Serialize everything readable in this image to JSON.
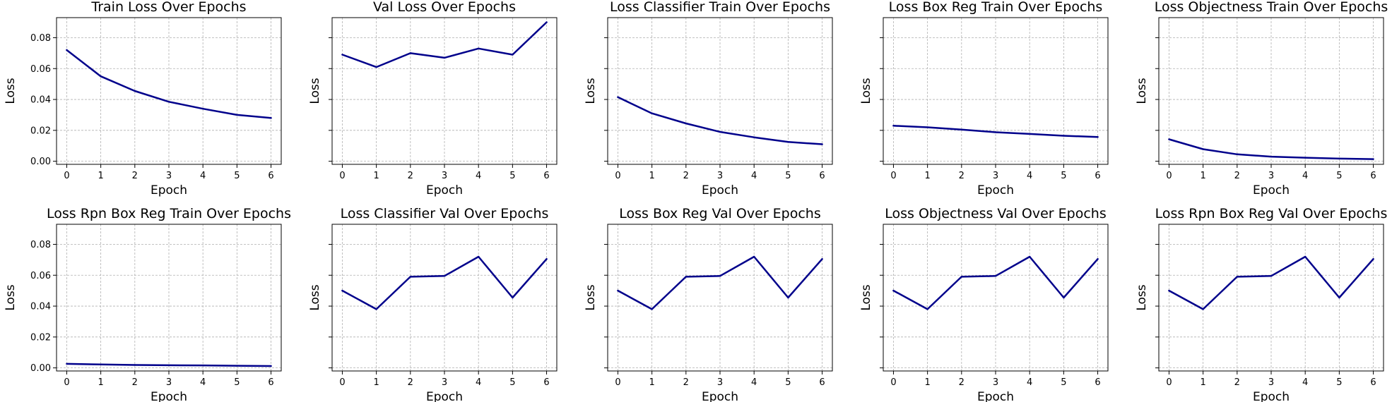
{
  "chart_data": [
    {
      "type": "line",
      "title": "Train Loss Over Epochs",
      "xlabel": "Epoch",
      "ylabel": "Loss",
      "x": [
        0,
        1,
        2,
        3,
        4,
        5,
        6
      ],
      "y": [
        0.072,
        0.055,
        0.0455,
        0.0385,
        0.034,
        0.03,
        0.028
      ],
      "ylim": [
        -0.002,
        0.093
      ],
      "yticks": [
        "0.00",
        "0.02",
        "0.04",
        "0.06",
        "0.08"
      ],
      "show_ytick_labels": true,
      "grid": true,
      "color": "#00008b"
    },
    {
      "type": "line",
      "title": "Val Loss Over Epochs",
      "xlabel": "Epoch",
      "ylabel": "Loss",
      "x": [
        0,
        1,
        2,
        3,
        4,
        5,
        6
      ],
      "y": [
        0.069,
        0.061,
        0.07,
        0.067,
        0.073,
        0.069,
        0.09
      ],
      "ylim": [
        -0.002,
        0.093
      ],
      "yticks": [
        "0.00",
        "0.02",
        "0.04",
        "0.06",
        "0.08"
      ],
      "show_ytick_labels": false,
      "grid": true,
      "color": "#00008b"
    },
    {
      "type": "line",
      "title": "Loss Classifier Train Over Epochs",
      "xlabel": "Epoch",
      "ylabel": "Loss",
      "x": [
        0,
        1,
        2,
        3,
        4,
        5,
        6
      ],
      "y": [
        0.0415,
        0.031,
        0.0245,
        0.019,
        0.0155,
        0.0125,
        0.011
      ],
      "ylim": [
        -0.002,
        0.093
      ],
      "yticks": [
        "0.00",
        "0.02",
        "0.04",
        "0.06",
        "0.08"
      ],
      "show_ytick_labels": false,
      "grid": true,
      "color": "#00008b"
    },
    {
      "type": "line",
      "title": "Loss Box Reg Train Over Epochs",
      "xlabel": "Epoch",
      "ylabel": "Loss",
      "x": [
        0,
        1,
        2,
        3,
        4,
        5,
        6
      ],
      "y": [
        0.023,
        0.022,
        0.0205,
        0.0188,
        0.0177,
        0.0165,
        0.0157
      ],
      "ylim": [
        -0.002,
        0.093
      ],
      "yticks": [
        "0.00",
        "0.02",
        "0.04",
        "0.06",
        "0.08"
      ],
      "show_ytick_labels": false,
      "grid": true,
      "color": "#00008b"
    },
    {
      "type": "line",
      "title": "Loss Objectness Train Over Epochs",
      "xlabel": "Epoch",
      "ylabel": "Loss",
      "x": [
        0,
        1,
        2,
        3,
        4,
        5,
        6
      ],
      "y": [
        0.0142,
        0.0078,
        0.0045,
        0.003,
        0.0023,
        0.0017,
        0.0014
      ],
      "ylim": [
        -0.002,
        0.093
      ],
      "yticks": [
        "0.00",
        "0.02",
        "0.04",
        "0.06",
        "0.08"
      ],
      "show_ytick_labels": false,
      "grid": true,
      "color": "#00008b"
    },
    {
      "type": "line",
      "title": "Loss Rpn Box Reg Train Over Epochs",
      "xlabel": "Epoch",
      "ylabel": "Loss",
      "x": [
        0,
        1,
        2,
        3,
        4,
        5,
        6
      ],
      "y": [
        0.0026,
        0.0022,
        0.0019,
        0.0017,
        0.0016,
        0.0014,
        0.0012
      ],
      "ylim": [
        -0.002,
        0.093
      ],
      "yticks": [
        "0.00",
        "0.02",
        "0.04",
        "0.06",
        "0.08"
      ],
      "show_ytick_labels": true,
      "grid": true,
      "color": "#00008b"
    },
    {
      "type": "line",
      "title": "Loss Classifier Val Over Epochs",
      "xlabel": "Epoch",
      "ylabel": "Loss",
      "x": [
        0,
        1,
        2,
        3,
        4,
        5,
        6
      ],
      "y": [
        0.05,
        0.038,
        0.059,
        0.0595,
        0.072,
        0.0455,
        0.0705
      ],
      "ylim": [
        -0.002,
        0.093
      ],
      "yticks": [
        "0.00",
        "0.02",
        "0.04",
        "0.06",
        "0.08"
      ],
      "show_ytick_labels": false,
      "grid": true,
      "color": "#00008b"
    },
    {
      "type": "line",
      "title": "Loss Box Reg Val Over Epochs",
      "xlabel": "Epoch",
      "ylabel": "Loss",
      "x": [
        0,
        1,
        2,
        3,
        4,
        5,
        6
      ],
      "y": [
        0.05,
        0.038,
        0.059,
        0.0595,
        0.072,
        0.0455,
        0.0705
      ],
      "ylim": [
        -0.002,
        0.093
      ],
      "yticks": [
        "0.00",
        "0.02",
        "0.04",
        "0.06",
        "0.08"
      ],
      "show_ytick_labels": false,
      "grid": true,
      "color": "#00008b"
    },
    {
      "type": "line",
      "title": "Loss Objectness Val Over Epochs",
      "xlabel": "Epoch",
      "ylabel": "Loss",
      "x": [
        0,
        1,
        2,
        3,
        4,
        5,
        6
      ],
      "y": [
        0.05,
        0.038,
        0.059,
        0.0595,
        0.072,
        0.0455,
        0.0705
      ],
      "ylim": [
        -0.002,
        0.093
      ],
      "yticks": [
        "0.00",
        "0.02",
        "0.04",
        "0.06",
        "0.08"
      ],
      "show_ytick_labels": false,
      "grid": true,
      "color": "#00008b"
    },
    {
      "type": "line",
      "title": "Loss Rpn Box Reg Val Over Epochs",
      "xlabel": "Epoch",
      "ylabel": "Loss",
      "x": [
        0,
        1,
        2,
        3,
        4,
        5,
        6
      ],
      "y": [
        0.05,
        0.038,
        0.059,
        0.0595,
        0.072,
        0.0455,
        0.0705
      ],
      "ylim": [
        -0.002,
        0.093
      ],
      "yticks": [
        "0.00",
        "0.02",
        "0.04",
        "0.06",
        "0.08"
      ],
      "show_ytick_labels": false,
      "grid": true,
      "color": "#00008b"
    }
  ]
}
